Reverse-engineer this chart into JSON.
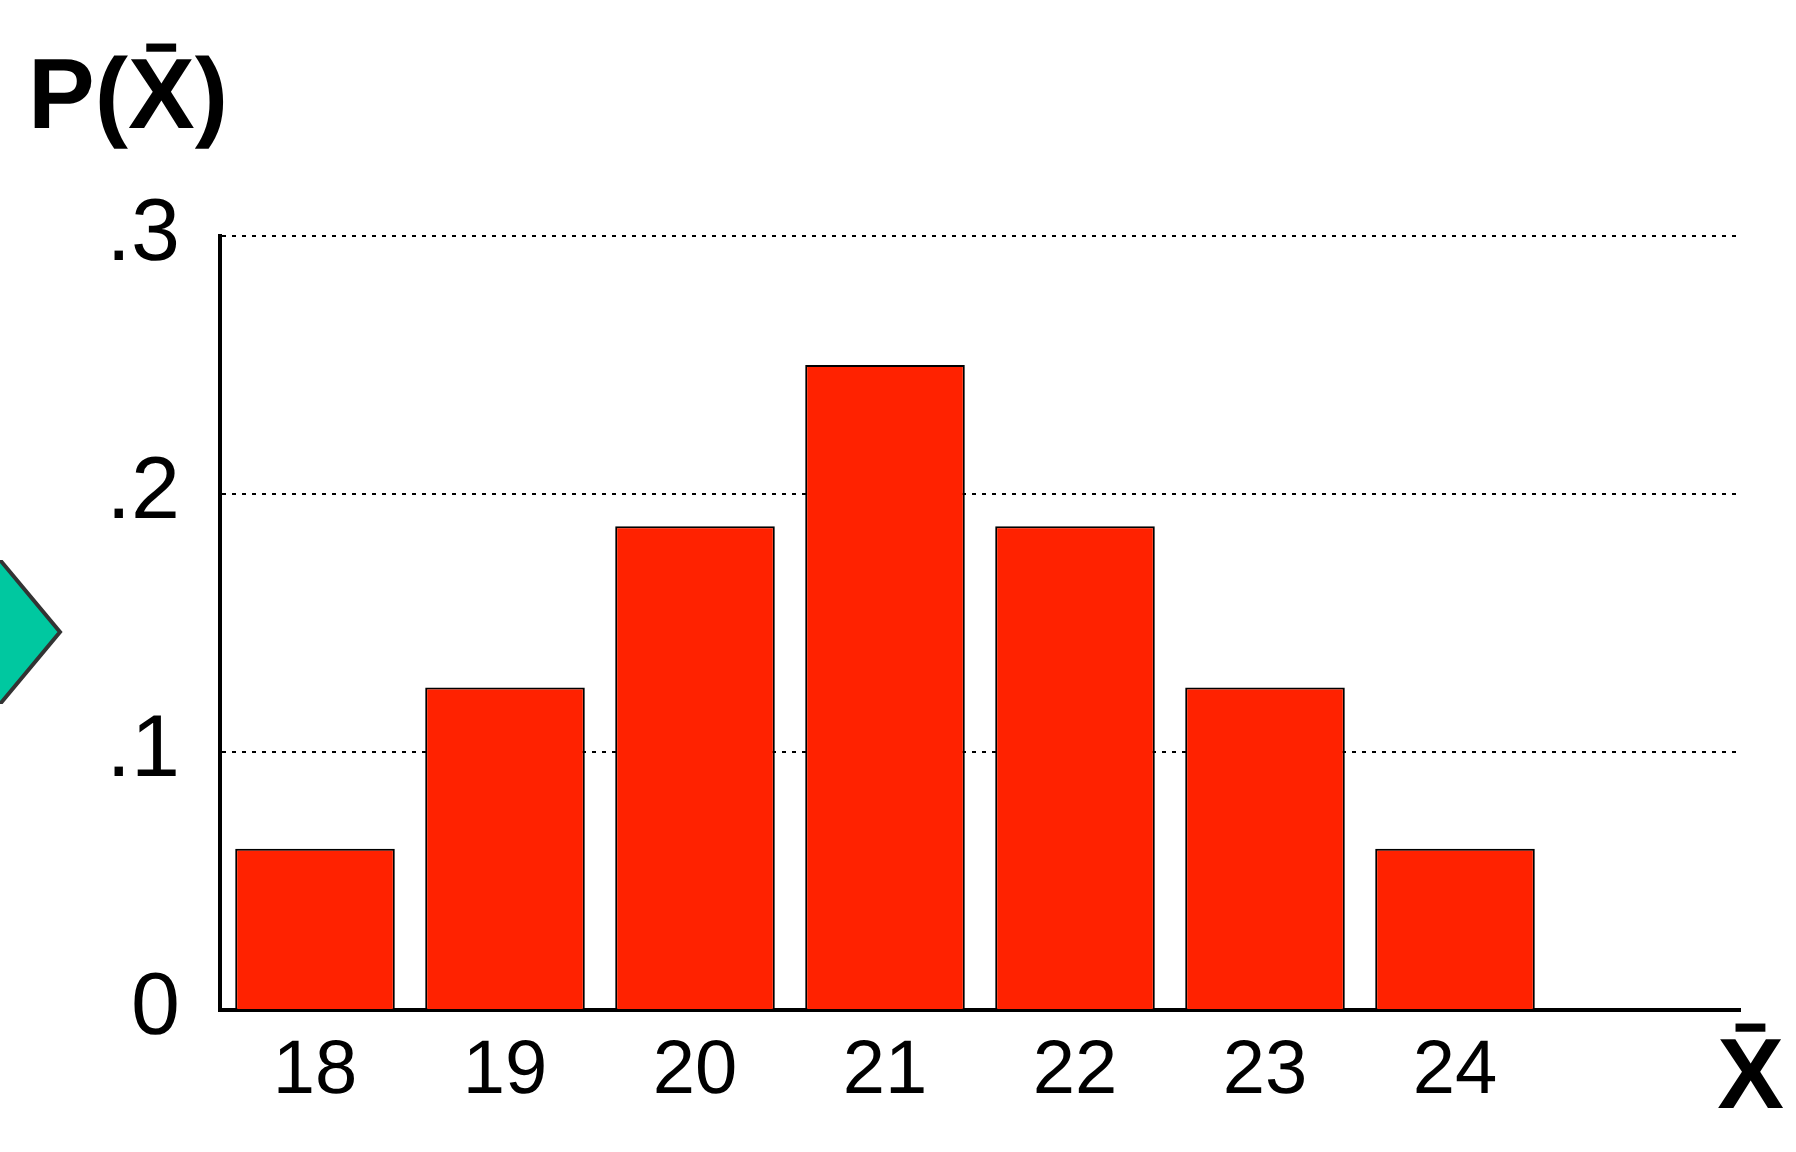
{
  "chart_data": {
    "type": "bar",
    "xlabel": "X̄",
    "ylabel": "P(X̄)",
    "categories": [
      "18",
      "19",
      "20",
      "21",
      "22",
      "23",
      "24",
      null
    ],
    "values": [
      0.0625,
      0.125,
      0.1875,
      0.25,
      0.1875,
      0.125,
      0.0625,
      null
    ],
    "color": "#ff2200",
    "ylim": [
      0,
      0.3
    ],
    "yticks": [
      0,
      {
        "value": 0.1,
        "label": ".1"
      },
      {
        "value": 0.2,
        "label": ".2"
      },
      {
        "value": 0.3,
        "label": ".3"
      }
    ],
    "grid": "y"
  }
}
